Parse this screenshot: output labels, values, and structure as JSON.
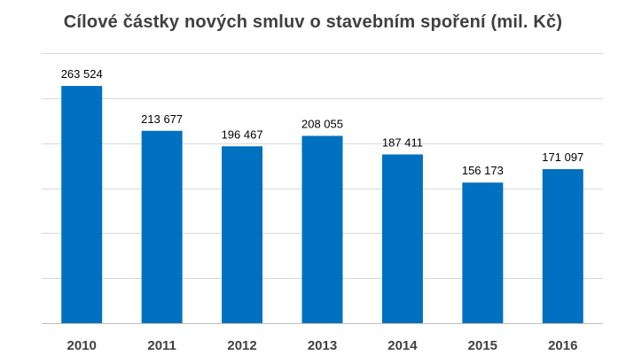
{
  "chart_data": {
    "type": "bar",
    "title": "Cílové částky nových smluv o stavebním spoření  (mil. Kč)",
    "categories": [
      "2010",
      "2011",
      "2012",
      "2013",
      "2014",
      "2015",
      "2016"
    ],
    "values": [
      263524,
      213677,
      196467,
      208055,
      187411,
      156173,
      171097
    ],
    "value_labels": [
      "263 524",
      "213 677",
      "196 467",
      "208 055",
      "187 411",
      "156 173",
      "171 097"
    ],
    "ylim": [
      0,
      300000
    ],
    "grid": true,
    "legend": "none",
    "bar_color": "#0070C0",
    "grid_color": "#d9d9d9",
    "axis_color": "#bfbfbf"
  }
}
